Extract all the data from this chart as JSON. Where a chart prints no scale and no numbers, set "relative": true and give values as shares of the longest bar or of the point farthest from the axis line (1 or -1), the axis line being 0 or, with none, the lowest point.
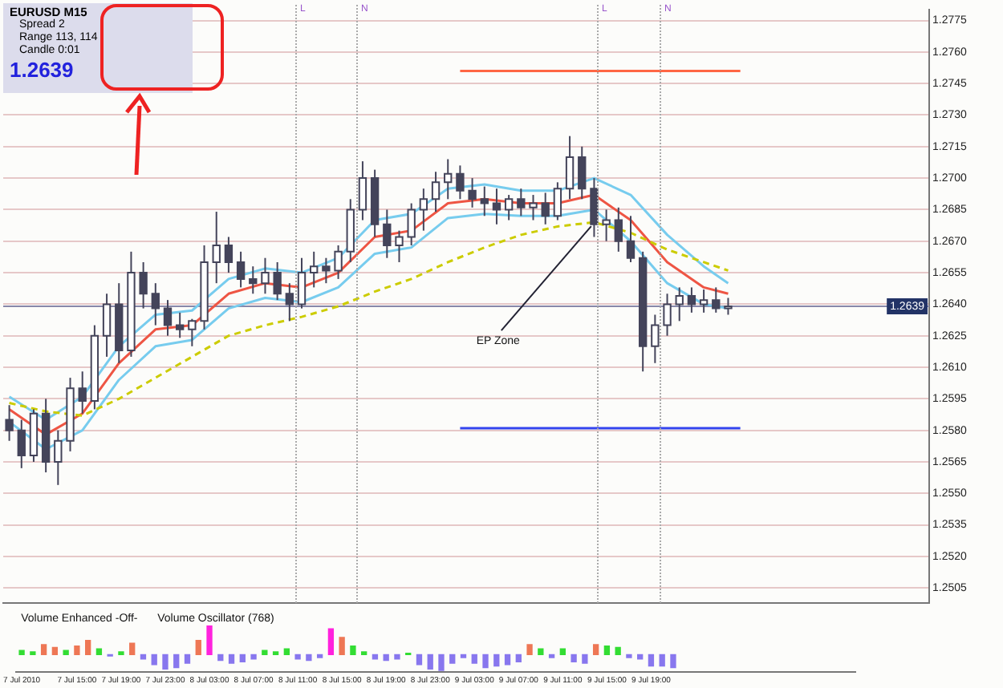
{
  "chart_data": [
    {
      "type": "candlestick",
      "title": "EURUSD  M15",
      "categories": [
        null,
        null,
        null,
        null,
        null,
        null,
        null,
        null,
        null,
        null,
        null,
        null,
        null,
        null,
        null,
        null,
        null,
        null,
        null,
        null,
        null,
        null,
        null,
        null,
        null,
        null,
        null,
        null,
        null,
        null,
        null,
        null,
        null,
        null,
        null,
        null,
        null,
        null,
        null,
        null,
        null,
        null,
        null,
        null,
        null,
        null,
        null,
        null,
        null,
        null,
        null,
        null,
        null,
        null,
        null,
        null,
        null,
        null,
        null,
        null,
        null,
        null,
        null,
        null,
        null,
        null,
        null,
        null,
        null,
        null,
        null,
        null,
        null,
        null,
        null,
        null
      ],
      "ohlc": [
        [
          1.2585,
          1.2592,
          1.2575,
          1.258
        ],
        [
          1.258,
          1.2585,
          1.2562,
          1.2568
        ],
        [
          1.2568,
          1.259,
          1.2565,
          1.2588
        ],
        [
          1.2588,
          1.2595,
          1.256,
          1.2565
        ],
        [
          1.2565,
          1.258,
          1.2554,
          1.2575
        ],
        [
          1.2575,
          1.2605,
          1.257,
          1.26
        ],
        [
          1.26,
          1.2608,
          1.2588,
          1.2594
        ],
        [
          1.2594,
          1.263,
          1.259,
          1.2625
        ],
        [
          1.2625,
          1.2645,
          1.2615,
          1.264
        ],
        [
          1.264,
          1.265,
          1.2612,
          1.2618
        ],
        [
          1.2618,
          1.2665,
          1.2615,
          1.2655
        ],
        [
          1.2655,
          1.266,
          1.2638,
          1.2645
        ],
        [
          1.2645,
          1.265,
          1.263,
          1.2638
        ],
        [
          1.2638,
          1.2642,
          1.2625,
          1.263
        ],
        [
          1.263,
          1.2636,
          1.2624,
          1.2628
        ],
        [
          1.2628,
          1.2633,
          1.262,
          1.2632
        ],
        [
          1.2632,
          1.2668,
          1.2628,
          1.266
        ],
        [
          1.266,
          1.2684,
          1.265,
          1.2668
        ],
        [
          1.2668,
          1.2672,
          1.2655,
          1.266
        ],
        [
          1.266,
          1.2665,
          1.2648,
          1.2652
        ],
        [
          1.2652,
          1.2658,
          1.2645,
          1.265
        ],
        [
          1.265,
          1.2662,
          1.2645,
          1.2655
        ],
        [
          1.2655,
          1.266,
          1.2642,
          1.2645
        ],
        [
          1.2645,
          1.265,
          1.2632,
          1.264
        ],
        [
          1.264,
          1.2662,
          1.2638,
          1.2655
        ],
        [
          1.2655,
          1.2665,
          1.2648,
          1.2658
        ],
        [
          1.2658,
          1.2662,
          1.265,
          1.2656
        ],
        [
          1.2656,
          1.2668,
          1.2652,
          1.2665
        ],
        [
          1.2665,
          1.269,
          1.266,
          1.2685
        ],
        [
          1.2685,
          1.2708,
          1.268,
          1.27
        ],
        [
          1.27,
          1.2704,
          1.2672,
          1.2678
        ],
        [
          1.2678,
          1.2685,
          1.2662,
          1.2668
        ],
        [
          1.2668,
          1.2675,
          1.266,
          1.2672
        ],
        [
          1.2672,
          1.2688,
          1.2668,
          1.2685
        ],
        [
          1.2685,
          1.2695,
          1.2675,
          1.269
        ],
        [
          1.269,
          1.2703,
          1.2684,
          1.2698
        ],
        [
          1.2698,
          1.2709,
          1.269,
          1.2702
        ],
        [
          1.2702,
          1.2706,
          1.269,
          1.2694
        ],
        [
          1.2694,
          1.27,
          1.2686,
          1.269
        ],
        [
          1.269,
          1.2696,
          1.2682,
          1.2688
        ],
        [
          1.2688,
          1.2695,
          1.2678,
          1.2685
        ],
        [
          1.2685,
          1.2692,
          1.268,
          1.269
        ],
        [
          1.269,
          1.2695,
          1.2682,
          1.2686
        ],
        [
          1.2686,
          1.2692,
          1.268,
          1.2688
        ],
        [
          1.2688,
          1.2693,
          1.2678,
          1.2682
        ],
        [
          1.2682,
          1.2698,
          1.268,
          1.2695
        ],
        [
          1.2695,
          1.272,
          1.269,
          1.271
        ],
        [
          1.271,
          1.2715,
          1.269,
          1.2695
        ],
        [
          1.2695,
          1.27,
          1.2672,
          1.2678
        ],
        [
          1.2678,
          1.2685,
          1.267,
          1.268
        ],
        [
          1.268,
          1.2686,
          1.2665,
          1.267
        ],
        [
          1.267,
          1.2682,
          1.266,
          1.2662
        ],
        [
          1.2662,
          1.2665,
          1.2608,
          1.262
        ],
        [
          1.262,
          1.2635,
          1.2612,
          1.263
        ],
        [
          1.263,
          1.2645,
          1.2625,
          1.264
        ],
        [
          1.264,
          1.2648,
          1.2632,
          1.2644
        ],
        [
          1.2644,
          1.2648,
          1.2636,
          1.264
        ],
        [
          1.264,
          1.2647,
          1.2636,
          1.2642
        ],
        [
          1.2642,
          1.2648,
          1.2636,
          1.2638
        ],
        [
          1.2638,
          1.2643,
          1.2635,
          1.2639
        ],
        null,
        null,
        null,
        null,
        null,
        null,
        null,
        null,
        null,
        null,
        null,
        null,
        null,
        null,
        null,
        null
      ],
      "series": [
        {
          "type": "line",
          "color": "#cccc00",
          "line_style": "dashed",
          "values": [
            1.2593,
            null,
            null,
            1.2589,
            null,
            null,
            1.2587,
            null,
            null,
            1.2595,
            null,
            null,
            1.2605,
            null,
            null,
            1.2615,
            null,
            null,
            1.2625,
            null,
            null,
            1.263,
            null,
            null,
            1.2634,
            null,
            null,
            1.2639,
            null,
            null,
            1.2646,
            null,
            null,
            1.2652,
            null,
            null,
            1.266,
            null,
            null,
            1.2667,
            null,
            null,
            1.2673,
            null,
            null,
            1.2677,
            null,
            null,
            1.2679,
            null,
            null,
            1.2674,
            null,
            null,
            1.2666,
            null,
            null,
            1.266,
            null,
            1.2656,
            null,
            null,
            null,
            null,
            null,
            null,
            null,
            null,
            null,
            null,
            null,
            null,
            null,
            null,
            null,
            null
          ]
        },
        {
          "type": "line",
          "color": "#77ccee",
          "line_style": "solid",
          "values": [
            1.2596,
            null,
            null,
            1.2585,
            null,
            null,
            1.2596,
            null,
            null,
            1.262,
            null,
            null,
            1.2635,
            null,
            null,
            1.2637,
            null,
            null,
            1.2652,
            null,
            null,
            1.2657,
            null,
            null,
            1.2655,
            null,
            null,
            1.2662,
            null,
            null,
            1.268,
            null,
            null,
            1.2683,
            null,
            null,
            1.2695,
            null,
            null,
            1.2697,
            null,
            null,
            1.2694,
            null,
            null,
            1.2694,
            null,
            null,
            1.27,
            null,
            null,
            1.2692,
            null,
            null,
            1.2673,
            null,
            null,
            1.2658,
            null,
            1.265,
            null,
            null,
            null,
            null,
            null,
            null,
            null,
            null,
            null,
            null,
            null,
            null,
            null,
            null,
            null,
            null
          ]
        },
        {
          "type": "line",
          "color": "#ee5544",
          "line_style": "solid",
          "values": [
            1.259,
            null,
            null,
            1.2578,
            null,
            null,
            1.2588,
            null,
            null,
            1.2612,
            null,
            null,
            1.2628,
            null,
            null,
            1.263,
            null,
            null,
            1.2645,
            null,
            null,
            1.265,
            null,
            null,
            1.2648,
            null,
            null,
            1.2655,
            null,
            null,
            1.2672,
            null,
            null,
            1.2675,
            null,
            null,
            1.2688,
            null,
            null,
            1.269,
            null,
            null,
            1.2688,
            null,
            null,
            1.2688,
            null,
            null,
            1.2692,
            null,
            null,
            1.268,
            null,
            null,
            1.266,
            null,
            null,
            1.2648,
            null,
            1.2645,
            null,
            null,
            null,
            null,
            null,
            null,
            null,
            null,
            null,
            null,
            null,
            null,
            null,
            null,
            null,
            null
          ]
        },
        {
          "type": "line",
          "color": "#77ccee",
          "line_style": "solid",
          "values": [
            1.2584,
            null,
            null,
            1.2571,
            null,
            null,
            1.258,
            null,
            null,
            1.2604,
            null,
            null,
            1.262,
            null,
            null,
            1.2623,
            null,
            null,
            1.2638,
            null,
            null,
            1.2643,
            null,
            null,
            1.2641,
            null,
            null,
            1.2648,
            null,
            null,
            1.2664,
            null,
            null,
            1.2667,
            null,
            null,
            1.2681,
            null,
            null,
            1.2683,
            null,
            null,
            1.2682,
            null,
            null,
            1.2682,
            null,
            null,
            1.2685,
            null,
            null,
            1.267,
            null,
            null,
            1.265,
            null,
            null,
            1.264,
            null,
            1.2638,
            null,
            null,
            null,
            null,
            null,
            null,
            null,
            null,
            null,
            null,
            null,
            null,
            null,
            null,
            null,
            null
          ]
        },
        {
          "type": "line",
          "color": "#ff6644",
          "line_style": "solid",
          "values": [
            null,
            null,
            null,
            null,
            null,
            null,
            null,
            null,
            null,
            null,
            null,
            null,
            null,
            null,
            null,
            null,
            null,
            null,
            null,
            null,
            null,
            null,
            null,
            null,
            null,
            null,
            null,
            null,
            null,
            null,
            null,
            null,
            null,
            null,
            null,
            null,
            null,
            1.2751,
            null,
            null,
            null,
            null,
            null,
            null,
            null,
            null,
            null,
            null,
            null,
            null,
            null,
            null,
            null,
            null,
            null,
            null,
            null,
            null,
            null,
            null,
            1.2751,
            null,
            null,
            null,
            null,
            null,
            null,
            null,
            null,
            null,
            null,
            null,
            null,
            null,
            null,
            null
          ]
        },
        {
          "type": "line",
          "color": "#3344ee",
          "line_style": "solid",
          "values": [
            null,
            null,
            null,
            null,
            null,
            null,
            null,
            null,
            null,
            null,
            null,
            null,
            null,
            null,
            null,
            null,
            null,
            null,
            null,
            null,
            null,
            null,
            null,
            null,
            null,
            null,
            null,
            null,
            null,
            null,
            null,
            null,
            null,
            null,
            null,
            null,
            null,
            1.2581,
            null,
            null,
            null,
            null,
            null,
            null,
            null,
            null,
            null,
            null,
            null,
            null,
            null,
            null,
            null,
            null,
            null,
            null,
            null,
            null,
            null,
            null,
            1.2581,
            null,
            null,
            null,
            null,
            null,
            null,
            null,
            null,
            null,
            null,
            null,
            null,
            null,
            null,
            null
          ]
        }
      ],
      "ylim": [
        1.2498,
        1.278
      ],
      "yticks": [
        1.2505,
        {
          "value": 1.252,
          "label": "1.2520"
        },
        1.2535,
        {
          "value": 1.255,
          "label": "1.2550"
        },
        1.2565,
        {
          "value": 1.258,
          "label": "1.2580"
        },
        1.2595,
        {
          "value": 1.261,
          "label": "1.2610"
        },
        1.2625,
        {
          "value": 1.264,
          "label": "1.2640"
        },
        1.2655,
        {
          "value": 1.267,
          "label": "1.2670"
        },
        1.2685,
        {
          "value": 1.27,
          "label": "1.2700"
        },
        1.2715,
        {
          "value": 1.273,
          "label": "1.2730"
        },
        1.2745,
        {
          "value": 1.276,
          "label": "1.2760"
        },
        1.2775
      ],
      "tick_labels": "y",
      "grid": "y",
      "ref_lines": [
        {
          "axis": "y",
          "value": 1.2639,
          "label": "1.2639",
          "color": "#8888aa",
          "line_style": "solid"
        }
      ],
      "annotations": [
        "Spread 2",
        "Range 113, 114",
        "Candle 0:01",
        "1.2639",
        "EP Zone",
        "L",
        "N",
        "L",
        "N"
      ]
    },
    {
      "type": "bar",
      "relative": true,
      "tick_labels": "x",
      "categories": [
        "7 Jul 2010",
        null,
        null,
        null,
        null,
        "7 Jul 15:00",
        null,
        null,
        null,
        "7 Jul 19:00",
        null,
        null,
        null,
        "7 Jul 23:00",
        null,
        null,
        null,
        "8 Jul 03:00",
        null,
        null,
        null,
        "8 Jul 07:00",
        null,
        null,
        null,
        "8 Jul 11:00",
        null,
        null,
        null,
        "8 Jul 15:00",
        null,
        null,
        null,
        "8 Jul 19:00",
        null,
        null,
        null,
        "8 Jul 23:00",
        null,
        null,
        null,
        "9 Jul 03:00",
        null,
        null,
        null,
        "9 Jul 07:00",
        null,
        null,
        null,
        "9 Jul 11:00",
        null,
        null,
        null,
        "9 Jul 15:00",
        null,
        null,
        null,
        "9 Jul 19:00",
        null,
        null,
        null,
        null,
        null,
        null,
        null,
        null,
        null,
        null,
        null,
        null,
        null,
        null,
        null,
        null,
        null,
        null
      ],
      "values": [
        0.15,
        0.1,
        0.35,
        0.25,
        0.15,
        0.3,
        0.5,
        0.2,
        -0.05,
        0.1,
        0.4,
        -0.15,
        -0.35,
        -0.5,
        -0.45,
        -0.3,
        0.5,
        1,
        -0.2,
        -0.3,
        -0.25,
        -0.15,
        0.15,
        0.1,
        0.2,
        -0.15,
        -0.2,
        -0.1,
        0.9,
        0.6,
        0.3,
        0.1,
        -0.15,
        -0.2,
        -0.15,
        0.05,
        -0.35,
        -0.5,
        -0.55,
        -0.3,
        -0.1,
        -0.3,
        -0.45,
        -0.4,
        -0.35,
        -0.25,
        0.35,
        0.2,
        -0.1,
        0.2,
        -0.25,
        -0.3,
        0.35,
        0.3,
        0.25,
        -0.1,
        -0.15,
        -0.4,
        -0.4,
        -0.45,
        null,
        null,
        null,
        null,
        null,
        null,
        null,
        null,
        null,
        null,
        null,
        null,
        null,
        null,
        null,
        null
      ],
      "colors": [
        "#33dd33",
        "#33dd33",
        "#ee7755",
        "#ee7755",
        "#33dd33",
        "#ee7755",
        "#ee7755",
        "#33dd33",
        "#8877ee",
        "#33dd33",
        "#ee7755",
        "#8877ee",
        "#8877ee",
        "#8877ee",
        "#8877ee",
        "#8877ee",
        "#ee7755",
        "#ff22dd",
        "#8877ee",
        "#8877ee",
        "#8877ee",
        "#8877ee",
        "#33dd33",
        "#33dd33",
        "#33dd33",
        "#8877ee",
        "#8877ee",
        "#8877ee",
        "#ff22dd",
        "#ee7755",
        "#33dd33",
        "#33dd33",
        "#8877ee",
        "#8877ee",
        "#8877ee",
        "#33dd33",
        "#8877ee",
        "#8877ee",
        "#8877ee",
        "#8877ee",
        "#8877ee",
        "#8877ee",
        "#8877ee",
        "#8877ee",
        "#8877ee",
        "#8877ee",
        "#ee7755",
        "#33dd33",
        "#8877ee",
        "#33dd33",
        "#8877ee",
        "#8877ee",
        "#ee7755",
        "#33dd33",
        "#33dd33",
        "#8877ee",
        "#8877ee",
        "#8877ee",
        "#8877ee",
        "#8877ee",
        null,
        null,
        null,
        null,
        null,
        null,
        null,
        null,
        null,
        null,
        null,
        null,
        null,
        null,
        null,
        null
      ],
      "annotations": [
        "Volume Enhanced -Off-",
        "Volume Oscillator (768)"
      ]
    }
  ]
}
